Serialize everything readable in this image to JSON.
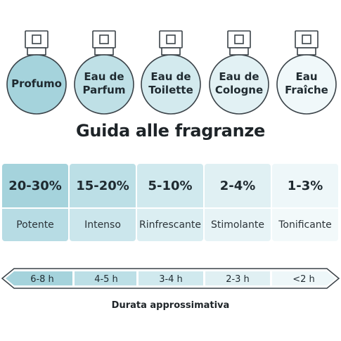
{
  "bottles": [
    {
      "lines": [
        "Profumo"
      ],
      "color": "#a5d3dc",
      "icon": "perfume-bottle-icon"
    },
    {
      "lines": [
        "Eau de",
        "Parfum"
      ],
      "color": "#bfe0e6",
      "icon": "perfume-bottle-icon"
    },
    {
      "lines": [
        "Eau de",
        "Toilette"
      ],
      "color": "#d3eaee",
      "icon": "perfume-bottle-icon"
    },
    {
      "lines": [
        "Eau de",
        "Cologne"
      ],
      "color": "#e2f1f4",
      "icon": "perfume-bottle-icon"
    },
    {
      "lines": [
        "Eau",
        "Fraîche"
      ],
      "color": "#f0f8fa",
      "icon": "perfume-bottle-icon"
    }
  ],
  "title": "Guida alle fragranze",
  "columns": [
    {
      "pct": "20-30%",
      "desc": "Potente",
      "pct_color": "#a5d3dc",
      "desc_color": "#b7dce4"
    },
    {
      "pct": "15-20%",
      "desc": "Intenso",
      "pct_color": "#bcdfe6",
      "desc_color": "#cbe6ec"
    },
    {
      "pct": "5-10%",
      "desc": "Rinfrescante",
      "pct_color": "#d0e9ee",
      "desc_color": "#dbeef2"
    },
    {
      "pct": "2-4%",
      "desc": "Stimolante",
      "pct_color": "#e0f0f3",
      "desc_color": "#e7f3f6"
    },
    {
      "pct": "1-3%",
      "desc": "Tonificante",
      "pct_color": "#eef7f9",
      "desc_color": "#f2f9fa"
    }
  ],
  "durations": [
    {
      "label": "6-8 h",
      "color": "#a5d3dc"
    },
    {
      "label": "4-5 h",
      "color": "#bcdfe6"
    },
    {
      "label": "3-4 h",
      "color": "#d0e9ee"
    },
    {
      "label": "2-3 h",
      "color": "#e0f0f3"
    },
    {
      "label": "<2 h",
      "color": "#eef7f9"
    }
  ],
  "footer": "Durata approssimativa",
  "stroke_color": "#3a4248"
}
